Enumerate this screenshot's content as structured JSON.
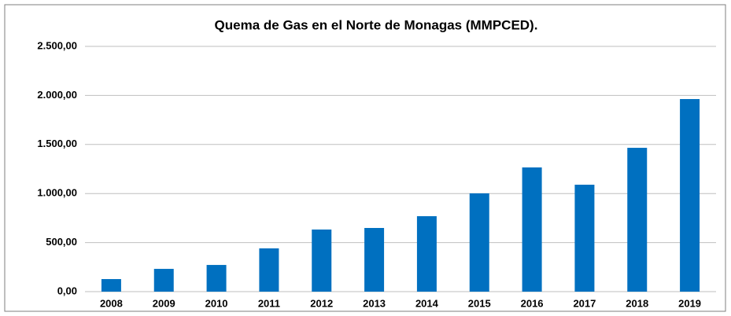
{
  "chart_data": {
    "type": "bar",
    "title": "Quema de Gas en el Norte de Monagas  (MMPCED).",
    "categories": [
      "2008",
      "2009",
      "2010",
      "2011",
      "2012",
      "2013",
      "2014",
      "2015",
      "2016",
      "2017",
      "2018",
      "2019"
    ],
    "values": [
      128,
      232,
      272,
      441,
      633,
      649,
      769,
      1002,
      1266,
      1090,
      1466,
      1963
    ],
    "color": "#0070c0",
    "ylim": [
      0,
      2500
    ],
    "yticks": [
      {
        "value": 0,
        "label": "0,00"
      },
      {
        "value": 500,
        "label": "500,00"
      },
      {
        "value": 1000,
        "label": "1.000,00"
      },
      {
        "value": 1500,
        "label": "1.500,00"
      },
      {
        "value": 2000,
        "label": "2.000,00"
      },
      {
        "value": 2500,
        "label": "2.500,00"
      }
    ],
    "grid": true
  }
}
